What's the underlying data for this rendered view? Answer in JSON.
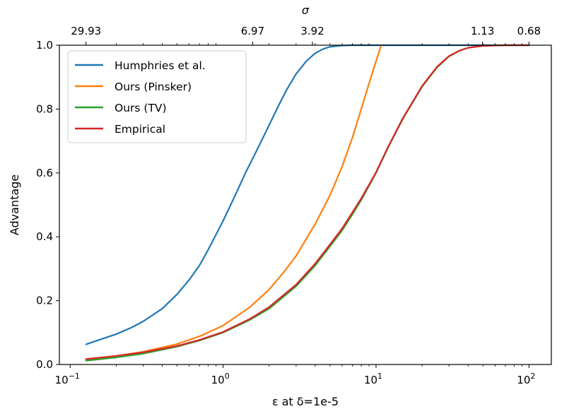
{
  "chart_data": {
    "type": "line",
    "xlabel": "ε at δ=1e-5",
    "ylabel": "Advantage",
    "top_xlabel": "σ",
    "x_scale": "log",
    "xlim": [
      0.085,
      140
    ],
    "ylim": [
      0.0,
      1.0
    ],
    "grid": false,
    "legend_position": "top-left",
    "x_ticks": [
      {
        "value": 0.1,
        "label_base": "10",
        "label_exp": "−1"
      },
      {
        "value": 1,
        "label_base": "10",
        "label_exp": "0"
      },
      {
        "value": 10,
        "label_base": "10",
        "label_exp": "1"
      },
      {
        "value": 100,
        "label_base": "10",
        "label_exp": "2"
      }
    ],
    "y_ticks": [
      "0.0",
      "0.2",
      "0.4",
      "0.6",
      "0.8",
      "1.0"
    ],
    "top_ticks": [
      {
        "eps": 0.127,
        "label": "29.93"
      },
      {
        "eps": 1.56,
        "label": "6.97"
      },
      {
        "eps": 3.84,
        "label": "3.92"
      },
      {
        "eps": 49.7,
        "label": "1.13"
      },
      {
        "eps": 100,
        "label": "0.68"
      }
    ],
    "series": [
      {
        "name": "Humphries et al.",
        "color": "#1f77b4",
        "x": [
          0.127,
          0.15,
          0.2,
          0.25,
          0.3,
          0.4,
          0.5,
          0.6,
          0.7,
          0.8,
          1.0,
          1.2,
          1.4,
          1.6,
          1.8,
          2.0,
          2.3,
          2.6,
          3.0,
          3.5,
          4.0,
          4.5,
          5.0,
          6.0,
          7.0,
          8.0,
          10.0,
          15.0,
          20.0,
          30.0,
          50.0,
          100.0
        ],
        "y": [
          0.063,
          0.075,
          0.095,
          0.115,
          0.135,
          0.175,
          0.22,
          0.265,
          0.31,
          0.36,
          0.45,
          0.53,
          0.6,
          0.655,
          0.705,
          0.75,
          0.81,
          0.86,
          0.91,
          0.95,
          0.975,
          0.988,
          0.995,
          0.999,
          1.0,
          1.0,
          1.0,
          1.0,
          1.0,
          1.0,
          1.0,
          1.0
        ]
      },
      {
        "name": "Ours (Pinsker)",
        "color": "#ff7f0e",
        "x": [
          0.127,
          0.2,
          0.3,
          0.5,
          0.7,
          1.0,
          1.5,
          2.0,
          2.5,
          3.0,
          4.0,
          5.0,
          6.0,
          7.0,
          8.0,
          9.0,
          10.0,
          10.8
        ],
        "y": [
          0.015,
          0.027,
          0.04,
          0.064,
          0.088,
          0.122,
          0.18,
          0.235,
          0.29,
          0.34,
          0.44,
          0.53,
          0.62,
          0.71,
          0.8,
          0.88,
          0.95,
          1.0
        ]
      },
      {
        "name": "Ours (TV)",
        "color": "#2ca02c",
        "x": [
          0.127,
          0.2,
          0.3,
          0.5,
          0.7,
          1.0,
          1.5,
          2.0,
          3.0,
          4.0,
          5.0,
          6.0,
          7.0,
          8.0,
          10.0,
          12.0,
          15.0,
          20.0,
          25.0,
          30.0,
          35.0,
          40.0,
          50.0,
          60.0,
          70.0,
          100.0
        ],
        "y": [
          0.012,
          0.022,
          0.034,
          0.056,
          0.075,
          0.1,
          0.14,
          0.175,
          0.245,
          0.31,
          0.37,
          0.42,
          0.47,
          0.515,
          0.6,
          0.68,
          0.77,
          0.87,
          0.93,
          0.965,
          0.982,
          0.992,
          0.998,
          0.999,
          1.0,
          1.0
        ]
      },
      {
        "name": "Empirical",
        "color": "#d62728",
        "x": [
          0.127,
          0.2,
          0.3,
          0.5,
          0.7,
          1.0,
          1.5,
          2.0,
          3.0,
          4.0,
          5.0,
          6.0,
          7.0,
          8.0,
          10.0,
          12.0,
          15.0,
          20.0,
          25.0,
          30.0,
          35.0,
          40.0,
          50.0,
          60.0,
          70.0,
          100.0
        ],
        "y": [
          0.017,
          0.027,
          0.038,
          0.058,
          0.077,
          0.102,
          0.143,
          0.18,
          0.25,
          0.316,
          0.376,
          0.426,
          0.476,
          0.52,
          0.602,
          0.682,
          0.772,
          0.872,
          0.932,
          0.966,
          0.983,
          0.992,
          0.998,
          0.999,
          1.0,
          1.0
        ]
      }
    ]
  }
}
